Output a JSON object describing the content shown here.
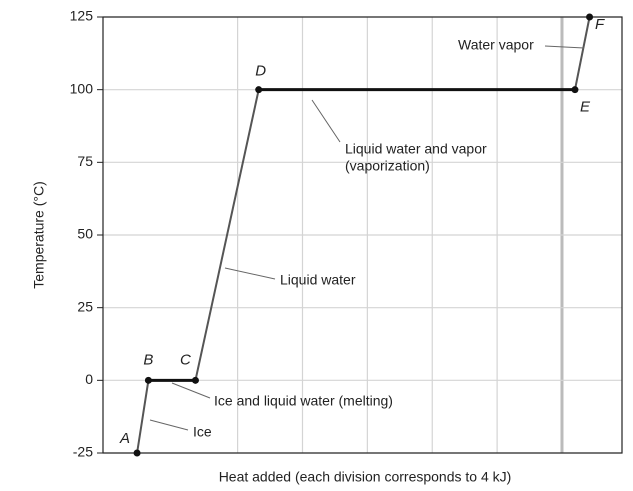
{
  "chart_data": {
    "type": "line",
    "y_label": "Temperature (°C)",
    "x_label": "Heat added (each division corresponds to 4 kJ)",
    "x": [
      2.1,
      2.8,
      5.7,
      9.6,
      29.1,
      30.0
    ],
    "values": [
      -25,
      0,
      0,
      100,
      100,
      125
    ],
    "point_labels": [
      "A",
      "B",
      "C",
      "D",
      "E",
      "F"
    ],
    "color": "#555555",
    "xlim": [
      0,
      32
    ],
    "xticks": [
      8.3,
      12.3,
      16.3,
      20.3,
      24.3,
      28.3
    ],
    "ylim": [
      -25,
      125
    ],
    "yticks": [
      -25,
      0,
      25,
      50,
      75,
      100,
      125
    ],
    "grid": true,
    "annotations": [
      {
        "lines": [
          "Ice"
        ]
      },
      {
        "lines": [
          "Ice and liquid water (melting)"
        ]
      },
      {
        "lines": [
          "Liquid water"
        ]
      },
      {
        "lines": [
          "Liquid water and vapor",
          "(vaporization)"
        ]
      },
      {
        "lines": [
          "Water vapor"
        ]
      }
    ]
  }
}
